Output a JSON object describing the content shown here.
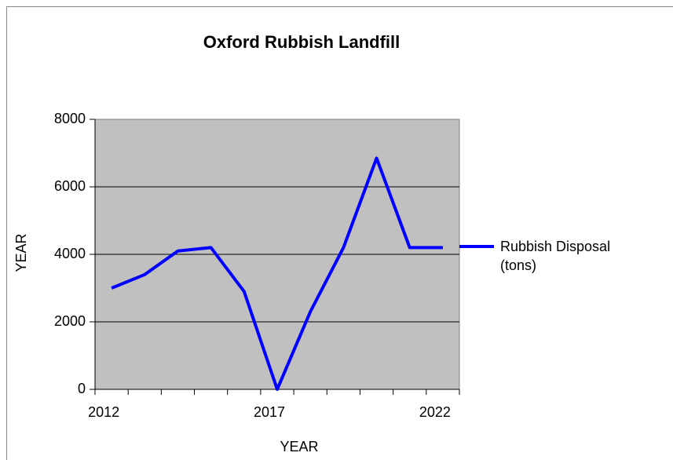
{
  "chart_data": {
    "type": "line",
    "title": "Oxford Rubbish Landfill",
    "x_label": "YEAR",
    "y_label": "YEAR",
    "categories": [
      "2012",
      null,
      null,
      null,
      null,
      "2017",
      null,
      null,
      null,
      null,
      "2022"
    ],
    "series": [
      {
        "name": "Rubbish Disposal (tons)",
        "color": "#0000ff",
        "values": [
          3000,
          3400,
          4100,
          4200,
          2900,
          0,
          2300,
          4200,
          6850,
          4200,
          4200
        ]
      }
    ],
    "ylim": [
      0,
      8000
    ],
    "yticks": [
      0,
      2000,
      4000,
      6000,
      8000
    ],
    "grid": true,
    "legend": "right"
  }
}
